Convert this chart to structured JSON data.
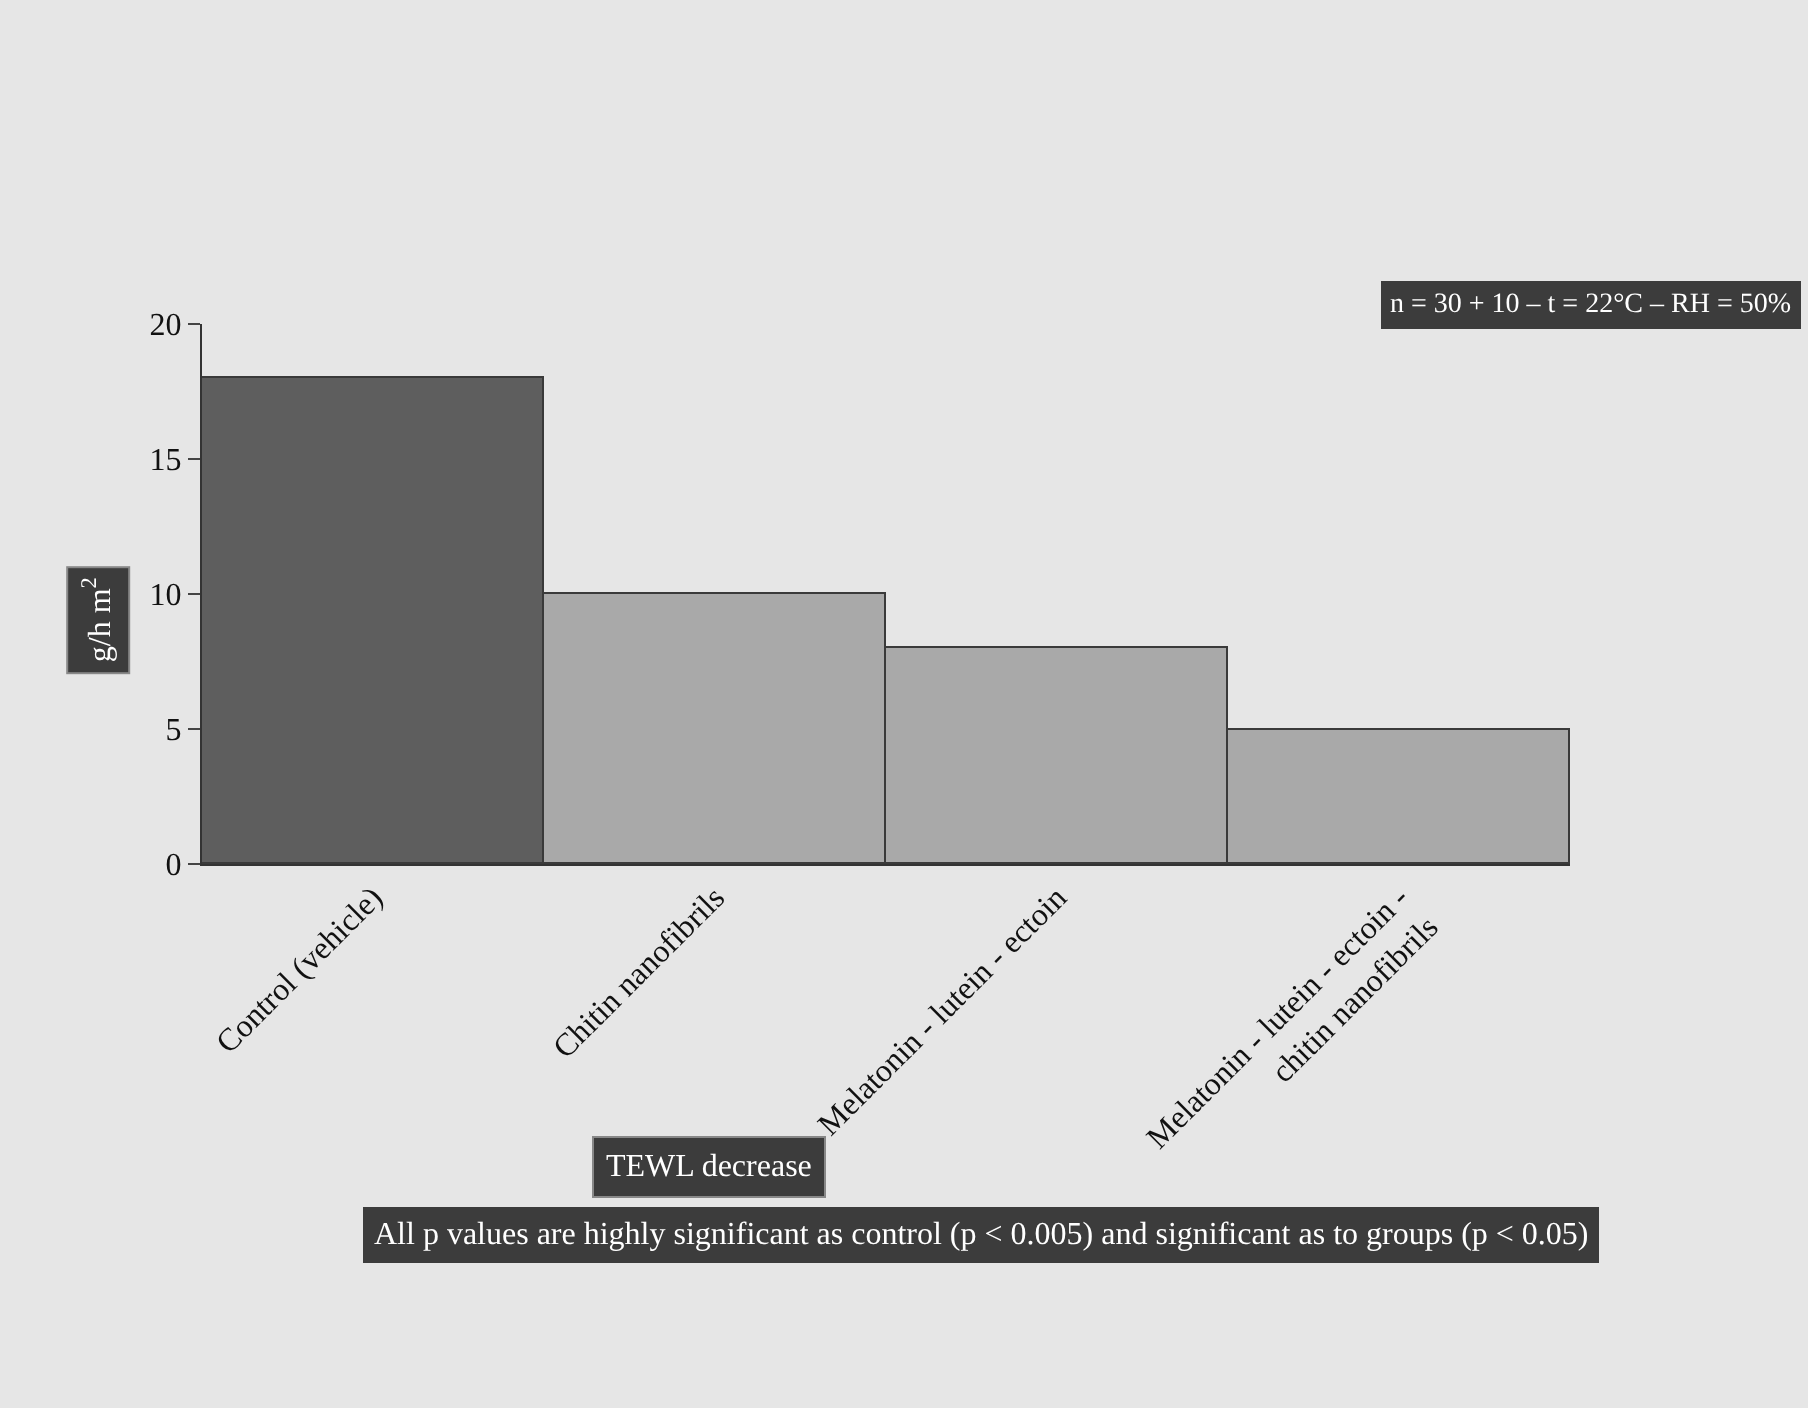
{
  "chart_data": {
    "type": "bar",
    "categories": [
      "Control (vehicle)",
      "Chitin nanofibrils",
      "Melatonin - lutein - ectoin",
      "Melatonin - lutein - ectoin -\nchitin nanofibrils"
    ],
    "values": [
      18,
      10,
      8,
      5
    ],
    "colors": [
      "#5e5e5e",
      "#a9a9a9",
      "#a9a9a9",
      "#a9a9a9"
    ],
    "xlabel": "TEWL decrease",
    "ylabel": "g/h m$^{2}$",
    "ylim": [
      0,
      20
    ],
    "yticks": [
      0,
      5,
      10,
      15,
      20
    ],
    "grid": false,
    "legend": false,
    "annotations": [
      "n = 30 + 10 – t = 22°C – RH = 50%",
      "All p values are highly significant as control (p < 0.005) and significant as to groups (p < 0.05)"
    ]
  }
}
